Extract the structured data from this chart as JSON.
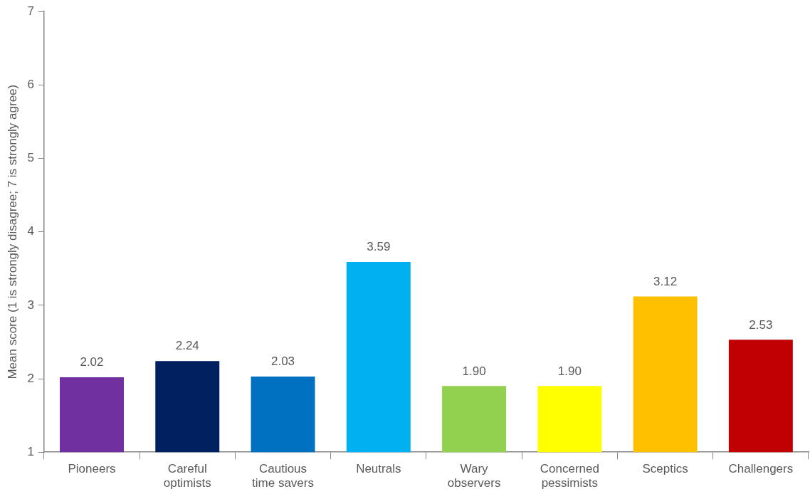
{
  "chart_data": {
    "type": "bar",
    "ylabel": "Mean score (1 is strongly disagree; 7 is strongly agree)",
    "categories": [
      "Pioneers",
      "Careful optimists",
      "Cautious time savers",
      "Neutrals",
      "Wary observers",
      "Concerned pessimists",
      "Sceptics",
      "Challengers"
    ],
    "values": [
      2.02,
      2.24,
      2.03,
      3.59,
      1.9,
      1.9,
      3.12,
      2.53
    ],
    "colors": [
      "#7030a0",
      "#002060",
      "#0070c0",
      "#00b0f0",
      "#92d050",
      "#ffff00",
      "#ffc000",
      "#c00000"
    ],
    "value_labels": [
      "2.02",
      "2.24",
      "2.03",
      "3.59",
      "1.90",
      "1.90",
      "3.12",
      "2.53"
    ],
    "ylim": [
      1,
      7
    ],
    "yticks": [
      1,
      2,
      3,
      4,
      5,
      6,
      7
    ],
    "grid": false,
    "legend": false
  }
}
